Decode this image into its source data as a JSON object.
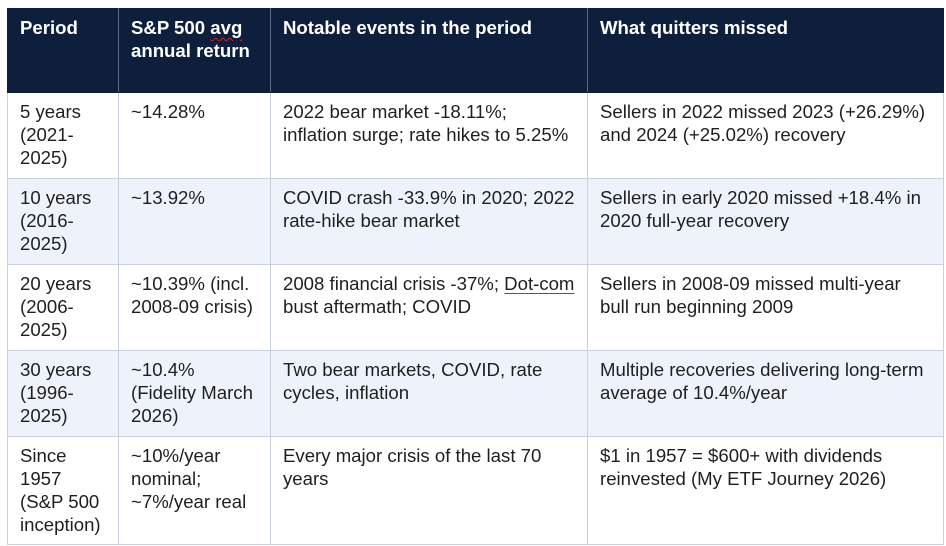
{
  "table": {
    "headers": {
      "period": "Period",
      "return_prefix": "S&P 500 ",
      "return_avg": "avg",
      "return_suffix": "annual return",
      "events": "Notable events in the period",
      "missed": "What quitters missed"
    },
    "rows": [
      {
        "period": "5 years (2021-2025)",
        "return": "~14.28%",
        "events": "2022 bear market -18.11%; inflation surge; rate hikes to 5.25%",
        "missed": "Sellers in 2022 missed 2023 (+26.29%) and 2024 (+25.02%) recovery"
      },
      {
        "period": "10 years (2016-2025)",
        "return": "~13.92%",
        "events": "COVID crash -33.9% in 2020; 2022 rate-hike bear market",
        "missed": "Sellers in early 2020 missed +18.4% in 2020 full-year recovery"
      },
      {
        "period": "20 years (2006-2025)",
        "return": "~10.39% (incl. 2008-09 crisis)",
        "events_before": "2008 financial crisis -37%; ",
        "events_link": "Dot-com",
        "events_after": " bust aftermath; COVID",
        "missed": "Sellers in 2008-09 missed multi-year bull run beginning 2009"
      },
      {
        "period": "30 years (1996-2025)",
        "return": "~10.4% (Fidelity March 2026)",
        "events": "Two bear markets, COVID, rate cycles, inflation",
        "missed": "Multiple recoveries delivering long-term average of 10.4%/year"
      },
      {
        "period": "Since 1957 (S&P 500 inception)",
        "return_line1": "~10%/year nominal;",
        "return_line2": "~7%/year real",
        "events": "Every major crisis of the last 70 years",
        "missed": "$1 in 1957 = $600+ with dividends reinvested (My ETF Journey 2026)"
      }
    ]
  }
}
